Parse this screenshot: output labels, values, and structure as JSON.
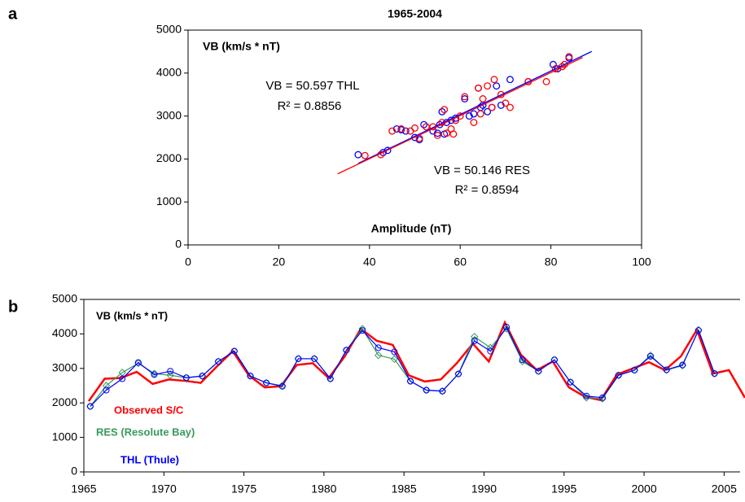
{
  "panel_labels": [
    "a",
    "b"
  ],
  "chart_data": [
    {
      "type": "scatter",
      "title": "1965-2004",
      "y_label": "VB (km/s * nT)",
      "x_label": "Amplitude (nT)",
      "xlim": [
        0,
        100
      ],
      "xticks": [
        0,
        20,
        40,
        60,
        80,
        100
      ],
      "ylim": [
        0,
        5000
      ],
      "yticks": [
        0,
        1000,
        2000,
        3000,
        4000,
        5000
      ],
      "annotations": [
        "VB = 50.597 THL",
        "R² = 0.8856",
        "VB = 50.146 RES",
        "R² = 0.8594"
      ],
      "series": [
        {
          "color": "#0000ff",
          "x": [
            37.5,
            43,
            44,
            46,
            47,
            48,
            50,
            51,
            52,
            54,
            55,
            55.5,
            56,
            56.5,
            57,
            58,
            59,
            61,
            62,
            63,
            64,
            64.5,
            65,
            66,
            67,
            68,
            69,
            71,
            75,
            80.5,
            81.5,
            84
          ],
          "values": [
            2100,
            2150,
            2200,
            2700,
            2680,
            2650,
            2500,
            2450,
            2800,
            2650,
            2600,
            2800,
            3100,
            2580,
            2850,
            2900,
            2950,
            3400,
            3000,
            3050,
            3650,
            3200,
            3250,
            3100,
            3200,
            3700,
            3250,
            3850,
            3800,
            4200,
            4100,
            4350
          ],
          "fit_x": [
            37.5,
            89
          ],
          "fit_y": [
            1897,
            4503
          ]
        },
        {
          "color": "#ff0000",
          "x": [
            39,
            42.5,
            45,
            47,
            49,
            50,
            51,
            52.5,
            54,
            55,
            56,
            56.5,
            57,
            58,
            58.5,
            59,
            60,
            61,
            63,
            64,
            64.5,
            65,
            66,
            67,
            67.5,
            69,
            70,
            71,
            75,
            79,
            81,
            82.5,
            83,
            84
          ],
          "values": [
            2080,
            2100,
            2650,
            2700,
            2650,
            2720,
            2480,
            2750,
            2750,
            2550,
            2850,
            3150,
            2600,
            2700,
            2580,
            2900,
            3000,
            3450,
            2850,
            3650,
            3050,
            3400,
            3700,
            3200,
            3850,
            3500,
            3300,
            3200,
            3800,
            3800,
            4100,
            4150,
            4200,
            4380
          ],
          "fit_x": [
            33,
            87
          ],
          "fit_y": [
            1655,
            4363
          ]
        }
      ]
    },
    {
      "type": "line",
      "y_label": "VB (km/s * nT)",
      "xlim": [
        1965,
        2006
      ],
      "xticks": [
        1965,
        1970,
        1975,
        1980,
        1985,
        1990,
        1995,
        2000,
        2005
      ],
      "ylim": [
        0,
        5000
      ],
      "yticks": [
        0,
        1000,
        2000,
        3000,
        4000,
        5000
      ],
      "series": [
        {
          "name": "Observed S/C",
          "color": "#ff0000",
          "marker": "none",
          "x": [
            1965.3,
            1966.3,
            1967.3,
            1968.3,
            1969.3,
            1970.3,
            1971.3,
            1972.3,
            1973.3,
            1974.3,
            1975.3,
            1976.3,
            1977.3,
            1978.3,
            1979.3,
            1980.3,
            1981.3,
            1982.3,
            1983.3,
            1984.3,
            1985.3,
            1986.3,
            1987.3,
            1988.3,
            1989.3,
            1990.3,
            1991.3,
            1992.3,
            1993.3,
            1994.3,
            1995.3,
            1996.3,
            1997.3,
            1998.3,
            1999.3,
            2000.3,
            2001.3,
            2002.3,
            2003.3,
            2004.3,
            2005.3,
            2006.3
          ],
          "values": [
            2050,
            2700,
            2720,
            2900,
            2550,
            2680,
            2640,
            2580,
            3050,
            3500,
            2800,
            2450,
            2480,
            3100,
            3150,
            2720,
            3350,
            4150,
            3800,
            3680,
            2800,
            2620,
            2680,
            3150,
            3720,
            3200,
            4330,
            3400,
            2950,
            3200,
            2450,
            2180,
            2080,
            2820,
            3000,
            3180,
            2950,
            3350,
            4120,
            2850,
            2950,
            2150
          ]
        },
        {
          "name": "RES (Resolute Bay)",
          "color": "#3a9a5a",
          "marker": "diamond",
          "x": [
            1965.4,
            1966.4,
            1967.4,
            1968.4,
            1969.4,
            1970.4,
            1971.4,
            1972.4,
            1973.4,
            1974.4,
            1975.4,
            1976.4,
            1977.4,
            1978.4,
            1979.4,
            1980.4,
            1981.4,
            1982.4,
            1983.4,
            1984.4,
            1985.4,
            1986.4,
            1987.4,
            1988.4,
            1989.4,
            1990.4,
            1991.4,
            1992.4,
            1993.4,
            1994.4,
            1995.4,
            1996.4,
            1997.4,
            1998.4,
            1999.4,
            2000.4,
            2001.4,
            2002.4,
            2003.4,
            2004.4
          ],
          "values": [
            1900,
            2500,
            2880,
            3150,
            2850,
            2800,
            2730,
            2780,
            3200,
            3500,
            2780,
            2580,
            2500,
            3280,
            3280,
            2700,
            3530,
            4150,
            3380,
            3270,
            2630,
            2370,
            2340,
            2840,
            3920,
            3600,
            4150,
            3200,
            2920,
            3250,
            2600,
            2150,
            2120,
            2800,
            2950,
            3380,
            2950,
            3080,
            4120,
            2850
          ]
        },
        {
          "name": "THL (Thule)",
          "color": "#0000ff",
          "marker": "circle",
          "x": [
            1965.4,
            1966.4,
            1967.4,
            1968.4,
            1969.4,
            1970.4,
            1971.4,
            1972.4,
            1973.4,
            1974.4,
            1975.4,
            1976.4,
            1977.4,
            1978.4,
            1979.4,
            1980.4,
            1981.4,
            1982.4,
            1983.4,
            1984.4,
            1985.4,
            1986.4,
            1987.4,
            1988.4,
            1989.4,
            1990.4,
            1991.4,
            1992.4,
            1993.4,
            1994.4,
            1995.4,
            1996.4,
            1997.4,
            1998.4,
            1999.4,
            2000.4,
            2001.4,
            2002.4,
            2003.4,
            2004.4
          ],
          "values": [
            1900,
            2370,
            2700,
            3170,
            2820,
            2920,
            2730,
            2780,
            3200,
            3500,
            2780,
            2580,
            2480,
            3280,
            3280,
            2700,
            3530,
            4100,
            3600,
            3480,
            2630,
            2370,
            2340,
            2840,
            3800,
            3500,
            4200,
            3250,
            2920,
            3250,
            2600,
            2200,
            2150,
            2800,
            2950,
            3350,
            2960,
            3100,
            4100,
            2850
          ]
        }
      ]
    }
  ]
}
